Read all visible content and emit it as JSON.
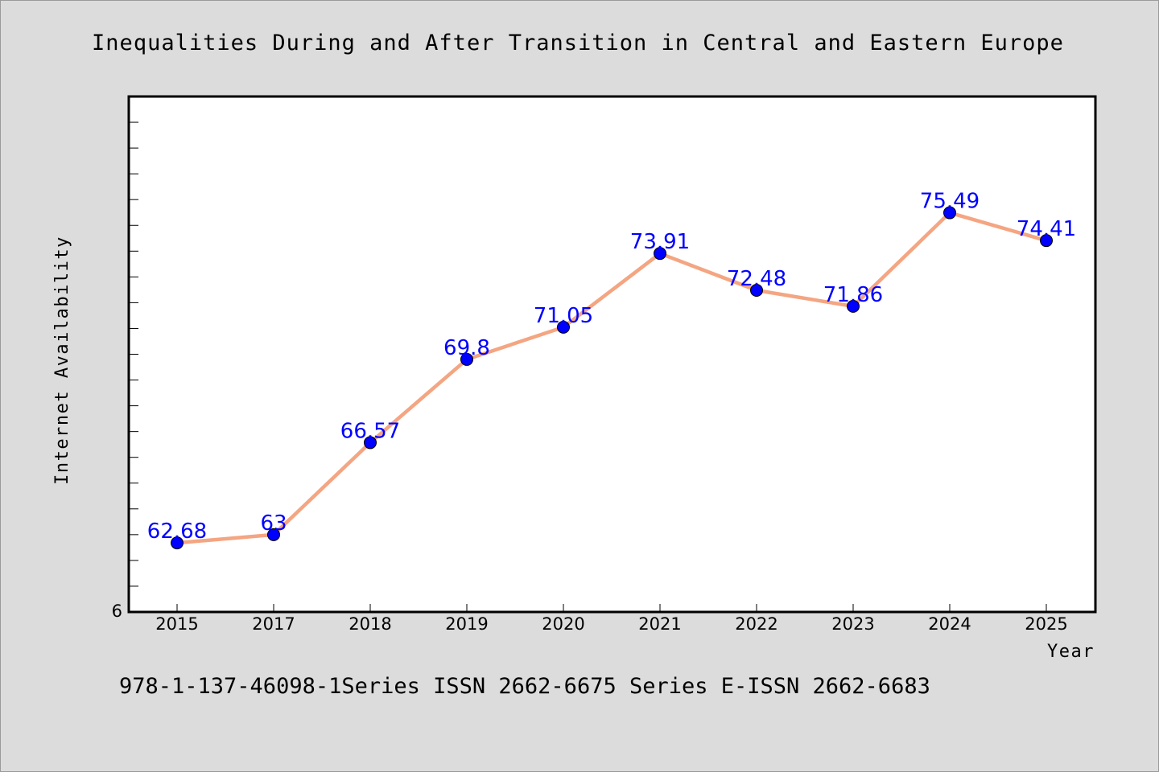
{
  "chart_data": {
    "type": "line",
    "title": "Inequalities During and After Transition in Central and Eastern Europe",
    "xlabel": "Year",
    "ylabel": "Internet Availability",
    "categories": [
      "2015",
      "2017",
      "2018",
      "2019",
      "2020",
      "2021",
      "2022",
      "2023",
      "2024",
      "2025"
    ],
    "series": [
      {
        "values": [
          62.68,
          63,
          66.57,
          69.8,
          71.05,
          73.91,
          72.48,
          71.86,
          75.49,
          74.41
        ],
        "data_labels": [
          "62.68",
          "63",
          "66.57",
          "69.8",
          "71.05",
          "73.91",
          "72.48",
          "71.86",
          "75.49",
          "74.41"
        ],
        "line_color": "#f4a582",
        "marker_color": "#0000ff"
      }
    ],
    "ylim": [
      60,
      80
    ],
    "y_tick_labels": [
      "6"
    ],
    "grid": false,
    "legend": "none"
  },
  "footer": {
    "text": "978-1-137-46098-1Series ISSN 2662-6675 Series E-ISSN 2662-6683"
  },
  "colors": {
    "background": "#dcdcdc",
    "plot_background": "#ffffff",
    "line": "#f4a582",
    "marker": "#0000ff",
    "data_label": "#0000ff"
  }
}
